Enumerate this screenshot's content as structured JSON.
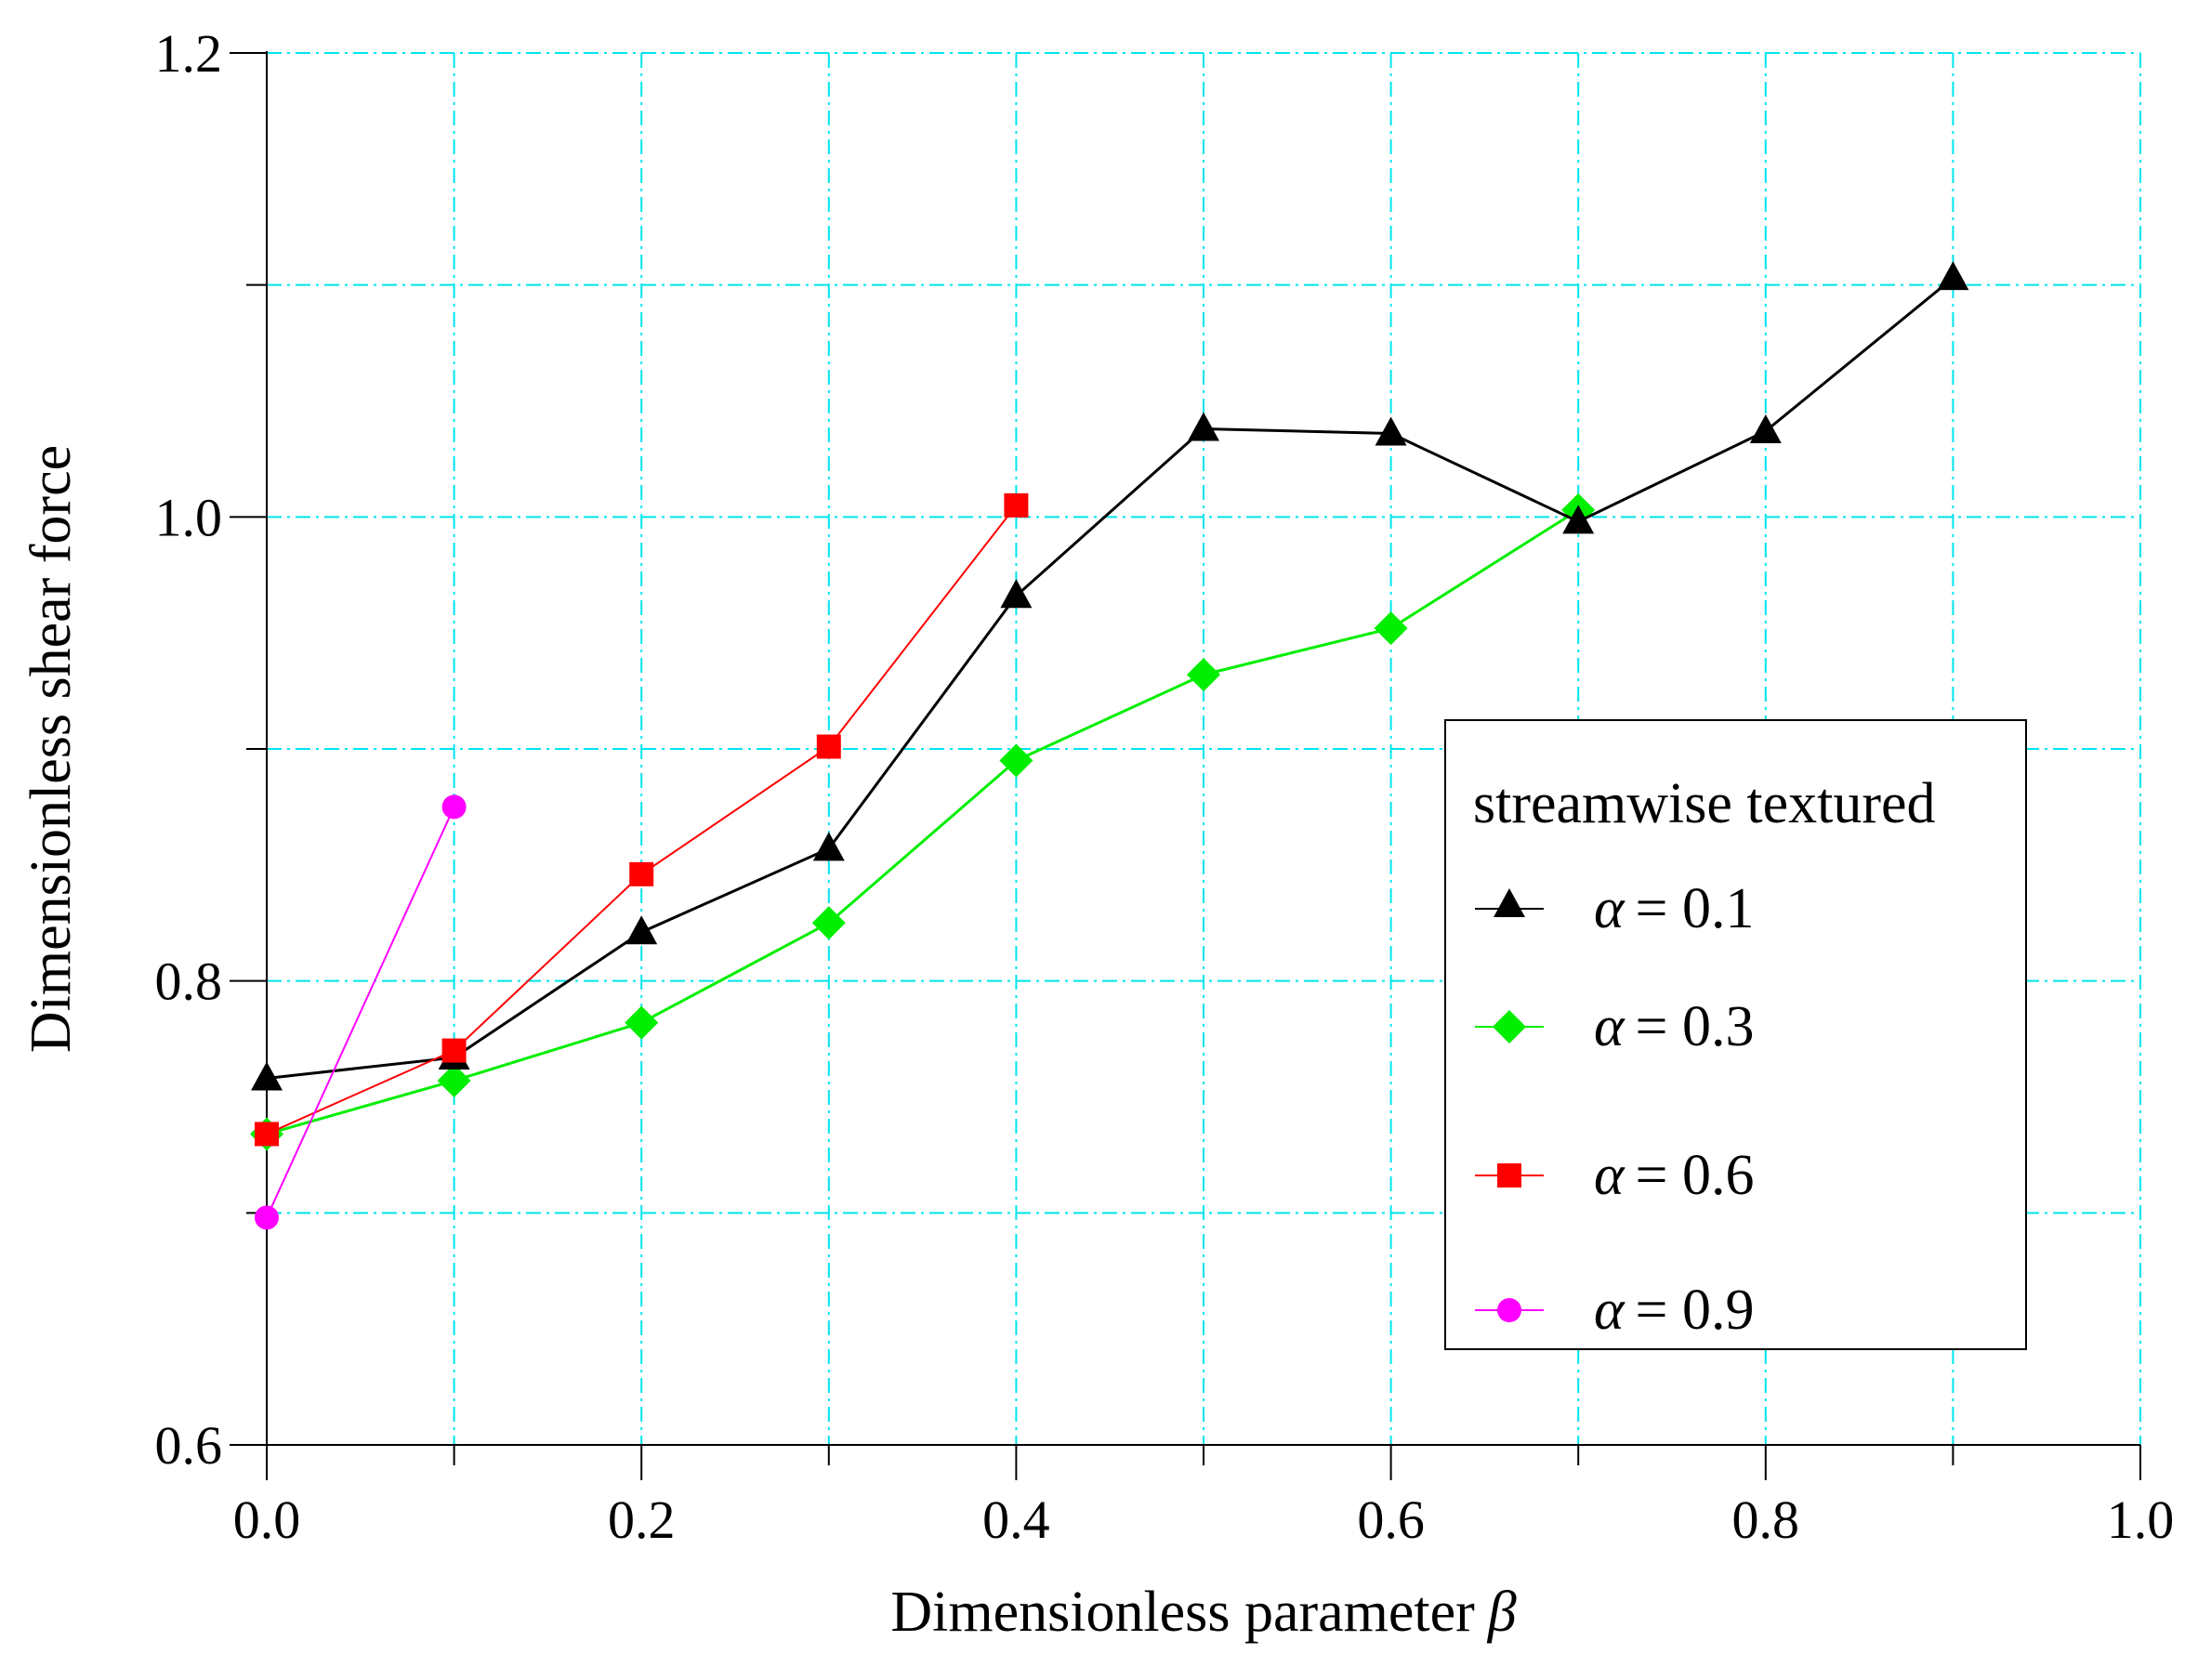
{
  "chart_data": {
    "type": "line",
    "title": "",
    "xlabel": "Dimensionless parameter",
    "xlabel_symbol": "β",
    "ylabel": "Dimensionless shear force",
    "xlim": [
      0.0,
      1.0
    ],
    "ylim": [
      0.6,
      1.2
    ],
    "x_ticks": [
      0.0,
      0.2,
      0.4,
      0.6,
      0.8,
      1.0
    ],
    "x_tick_labels": [
      "0.0",
      "0.2",
      "0.4",
      "0.6",
      "0.8",
      "1.0"
    ],
    "x_grid": [
      0.0,
      0.1,
      0.2,
      0.3,
      0.4,
      0.5,
      0.6,
      0.7,
      0.8,
      0.9,
      1.0
    ],
    "y_ticks": [
      0.6,
      0.8,
      1.0,
      1.2
    ],
    "y_tick_labels": [
      "0.6",
      "0.8",
      "1.0",
      "1.2"
    ],
    "y_grid": [
      0.6,
      0.7,
      0.8,
      0.9,
      1.0,
      1.1,
      1.2
    ],
    "grid": true,
    "legend": {
      "title": "streamwise textured",
      "position": "right"
    },
    "series": [
      {
        "name": "α = 0.1",
        "symbol": "α",
        "value_label": "= 0.1",
        "color": "#000000",
        "marker": "triangle",
        "x": [
          0.0,
          0.1,
          0.2,
          0.3,
          0.4,
          0.5,
          0.6,
          0.7,
          0.8,
          0.9
        ],
        "y": [
          0.758,
          0.767,
          0.821,
          0.857,
          0.966,
          1.038,
          1.036,
          0.998,
          1.037,
          1.103
        ]
      },
      {
        "name": "α = 0.3",
        "symbol": "α",
        "value_label": "= 0.3",
        "color": "#00ee00",
        "marker": "diamond",
        "x": [
          0.0,
          0.1,
          0.2,
          0.3,
          0.4,
          0.5,
          0.6,
          0.7
        ],
        "y": [
          0.734,
          0.757,
          0.782,
          0.825,
          0.895,
          0.932,
          0.952,
          1.003
        ]
      },
      {
        "name": "α = 0.6",
        "symbol": "α",
        "value_label": "= 0.6",
        "color": "#ff0000",
        "marker": "square",
        "x": [
          0.0,
          0.1,
          0.2,
          0.3,
          0.4
        ],
        "y": [
          0.734,
          0.77,
          0.846,
          0.901,
          1.005
        ]
      },
      {
        "name": "α = 0.9",
        "symbol": "α",
        "value_label": "= 0.9",
        "color": "#ff00ff",
        "marker": "circle",
        "x": [
          0.0,
          0.1
        ],
        "y": [
          0.698,
          0.875
        ]
      }
    ]
  }
}
